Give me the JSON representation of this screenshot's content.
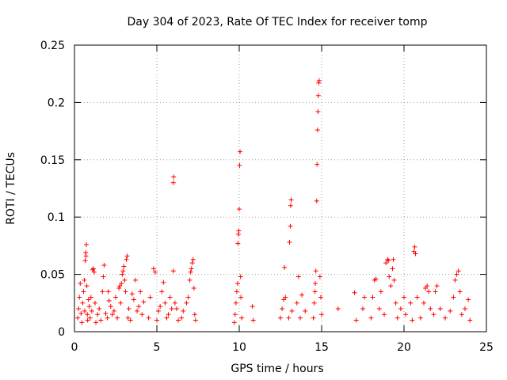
{
  "chart_data": {
    "type": "scatter",
    "title": "Day 304 of 2023, Rate Of TEC Index for receiver tomp",
    "xlabel": "GPS time / hours",
    "ylabel": "ROTI / TECUs",
    "xlim": [
      0,
      25
    ],
    "ylim": [
      0,
      0.25
    ],
    "xticks": [
      0,
      5,
      10,
      15,
      20,
      25
    ],
    "xtick_labels": [
      "0",
      "5",
      "10",
      "15",
      "20",
      "25"
    ],
    "yticks": [
      0,
      0.05,
      0.1,
      0.15,
      0.2,
      0.25
    ],
    "ytick_labels": [
      "0",
      "0.05",
      "0.1",
      "0.15",
      "0.2",
      "0.25"
    ],
    "grid": true,
    "marker": "+",
    "color": "#ff0000",
    "series": [
      {
        "name": "ROTI",
        "points": [
          [
            0.2,
            0.012
          ],
          [
            0.25,
            0.02
          ],
          [
            0.3,
            0.03
          ],
          [
            0.35,
            0.042
          ],
          [
            0.4,
            0.016
          ],
          [
            0.45,
            0.008
          ],
          [
            0.5,
            0.025
          ],
          [
            0.55,
            0.035
          ],
          [
            0.6,
            0.045
          ],
          [
            0.62,
            0.018
          ],
          [
            0.65,
            0.062
          ],
          [
            0.68,
            0.069
          ],
          [
            0.7,
            0.066
          ],
          [
            0.72,
            0.076
          ],
          [
            0.75,
            0.04
          ],
          [
            0.78,
            0.015
          ],
          [
            0.8,
            0.01
          ],
          [
            0.85,
            0.028
          ],
          [
            0.9,
            0.022
          ],
          [
            0.95,
            0.012
          ],
          [
            1.0,
            0.03
          ],
          [
            1.05,
            0.018
          ],
          [
            1.1,
            0.054
          ],
          [
            1.15,
            0.055
          ],
          [
            1.2,
            0.052
          ],
          [
            1.25,
            0.025
          ],
          [
            1.3,
            0.008
          ],
          [
            1.4,
            0.015
          ],
          [
            1.5,
            0.02
          ],
          [
            1.6,
            0.01
          ],
          [
            1.7,
            0.035
          ],
          [
            1.75,
            0.048
          ],
          [
            1.8,
            0.058
          ],
          [
            1.9,
            0.016
          ],
          [
            2.0,
            0.012
          ],
          [
            2.05,
            0.035
          ],
          [
            2.1,
            0.027
          ],
          [
            2.2,
            0.022
          ],
          [
            2.3,
            0.015
          ],
          [
            2.4,
            0.018
          ],
          [
            2.5,
            0.03
          ],
          [
            2.6,
            0.012
          ],
          [
            2.7,
            0.038
          ],
          [
            2.75,
            0.04
          ],
          [
            2.8,
            0.025
          ],
          [
            2.85,
            0.042
          ],
          [
            2.9,
            0.05
          ],
          [
            2.95,
            0.053
          ],
          [
            3.0,
            0.057
          ],
          [
            3.05,
            0.045
          ],
          [
            3.1,
            0.035
          ],
          [
            3.15,
            0.063
          ],
          [
            3.2,
            0.066
          ],
          [
            3.25,
            0.012
          ],
          [
            3.3,
            0.02
          ],
          [
            3.4,
            0.01
          ],
          [
            3.5,
            0.033
          ],
          [
            3.6,
            0.028
          ],
          [
            3.7,
            0.045
          ],
          [
            3.8,
            0.018
          ],
          [
            3.9,
            0.022
          ],
          [
            4.0,
            0.035
          ],
          [
            4.1,
            0.015
          ],
          [
            4.2,
            0.026
          ],
          [
            4.5,
            0.012
          ],
          [
            4.6,
            0.03
          ],
          [
            4.8,
            0.055
          ],
          [
            4.9,
            0.052
          ],
          [
            5.0,
            0.01
          ],
          [
            5.1,
            0.018
          ],
          [
            5.2,
            0.022
          ],
          [
            5.3,
            0.035
          ],
          [
            5.4,
            0.043
          ],
          [
            5.5,
            0.025
          ],
          [
            5.6,
            0.012
          ],
          [
            5.7,
            0.015
          ],
          [
            5.8,
            0.03
          ],
          [
            5.9,
            0.02
          ],
          [
            6.0,
            0.053
          ],
          [
            6.0,
            0.13
          ],
          [
            6.02,
            0.135
          ],
          [
            6.1,
            0.025
          ],
          [
            6.2,
            0.02
          ],
          [
            6.3,
            0.01
          ],
          [
            6.5,
            0.012
          ],
          [
            6.6,
            0.018
          ],
          [
            6.8,
            0.025
          ],
          [
            6.9,
            0.03
          ],
          [
            7.0,
            0.045
          ],
          [
            7.05,
            0.052
          ],
          [
            7.1,
            0.055
          ],
          [
            7.15,
            0.06
          ],
          [
            7.2,
            0.063
          ],
          [
            7.25,
            0.038
          ],
          [
            7.3,
            0.015
          ],
          [
            7.35,
            0.01
          ],
          [
            9.7,
            0.008
          ],
          [
            9.75,
            0.015
          ],
          [
            9.8,
            0.025
          ],
          [
            9.85,
            0.035
          ],
          [
            9.9,
            0.042
          ],
          [
            9.92,
            0.077
          ],
          [
            9.95,
            0.085
          ],
          [
            9.97,
            0.088
          ],
          [
            10.0,
            0.107
          ],
          [
            10.02,
            0.145
          ],
          [
            10.05,
            0.157
          ],
          [
            10.08,
            0.048
          ],
          [
            10.1,
            0.03
          ],
          [
            10.15,
            0.012
          ],
          [
            10.8,
            0.022
          ],
          [
            10.85,
            0.01
          ],
          [
            12.5,
            0.012
          ],
          [
            12.6,
            0.02
          ],
          [
            12.7,
            0.028
          ],
          [
            12.75,
            0.056
          ],
          [
            12.8,
            0.03
          ],
          [
            13.0,
            0.012
          ],
          [
            13.05,
            0.078
          ],
          [
            13.1,
            0.092
          ],
          [
            13.12,
            0.11
          ],
          [
            13.15,
            0.115
          ],
          [
            13.2,
            0.018
          ],
          [
            13.5,
            0.025
          ],
          [
            13.6,
            0.048
          ],
          [
            13.7,
            0.012
          ],
          [
            13.8,
            0.032
          ],
          [
            14.0,
            0.018
          ],
          [
            14.5,
            0.012
          ],
          [
            14.55,
            0.025
          ],
          [
            14.6,
            0.035
          ],
          [
            14.62,
            0.042
          ],
          [
            14.65,
            0.053
          ],
          [
            14.7,
            0.114
          ],
          [
            14.72,
            0.146
          ],
          [
            14.75,
            0.176
          ],
          [
            14.78,
            0.192
          ],
          [
            14.8,
            0.206
          ],
          [
            14.82,
            0.217
          ],
          [
            14.85,
            0.219
          ],
          [
            14.9,
            0.048
          ],
          [
            14.95,
            0.03
          ],
          [
            15.0,
            0.015
          ],
          [
            16.0,
            0.02
          ],
          [
            17.0,
            0.034
          ],
          [
            17.1,
            0.01
          ],
          [
            17.5,
            0.02
          ],
          [
            17.6,
            0.03
          ],
          [
            18.0,
            0.012
          ],
          [
            18.1,
            0.03
          ],
          [
            18.2,
            0.045
          ],
          [
            18.3,
            0.046
          ],
          [
            18.5,
            0.02
          ],
          [
            18.6,
            0.035
          ],
          [
            18.8,
            0.015
          ],
          [
            18.9,
            0.06
          ],
          [
            19.0,
            0.063
          ],
          [
            19.05,
            0.062
          ],
          [
            19.1,
            0.048
          ],
          [
            19.2,
            0.04
          ],
          [
            19.3,
            0.055
          ],
          [
            19.35,
            0.063
          ],
          [
            19.4,
            0.045
          ],
          [
            19.5,
            0.025
          ],
          [
            19.6,
            0.012
          ],
          [
            19.8,
            0.02
          ],
          [
            20.0,
            0.03
          ],
          [
            20.1,
            0.015
          ],
          [
            20.4,
            0.025
          ],
          [
            20.5,
            0.01
          ],
          [
            20.6,
            0.07
          ],
          [
            20.65,
            0.074
          ],
          [
            20.7,
            0.068
          ],
          [
            20.8,
            0.03
          ],
          [
            21.0,
            0.012
          ],
          [
            21.2,
            0.025
          ],
          [
            21.3,
            0.038
          ],
          [
            21.4,
            0.04
          ],
          [
            21.5,
            0.035
          ],
          [
            21.6,
            0.02
          ],
          [
            21.8,
            0.015
          ],
          [
            21.9,
            0.035
          ],
          [
            22.0,
            0.04
          ],
          [
            22.2,
            0.02
          ],
          [
            22.5,
            0.012
          ],
          [
            22.8,
            0.018
          ],
          [
            23.0,
            0.03
          ],
          [
            23.1,
            0.045
          ],
          [
            23.2,
            0.05
          ],
          [
            23.3,
            0.053
          ],
          [
            23.4,
            0.035
          ],
          [
            23.5,
            0.015
          ],
          [
            23.7,
            0.02
          ],
          [
            23.9,
            0.028
          ],
          [
            24.0,
            0.01
          ]
        ]
      }
    ]
  }
}
